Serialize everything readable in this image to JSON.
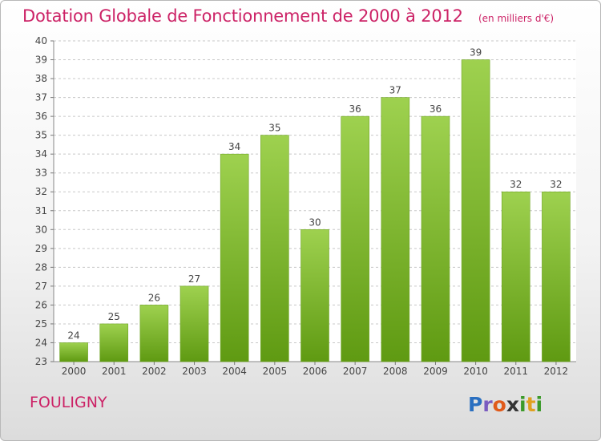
{
  "header": {
    "title": "Dotation Globale de Fonctionnement de 2000 à 2012",
    "subtitle": "(en milliers d'€)"
  },
  "commune": "FOULIGNY",
  "brand": {
    "name": "Proxiti",
    "letters": [
      {
        "char": "P",
        "color": "#2a6fc0"
      },
      {
        "char": "r",
        "color": "#7a5cc0"
      },
      {
        "char": "o",
        "color": "#e05a1a"
      },
      {
        "char": "x",
        "color": "#333333"
      },
      {
        "char": "i",
        "color": "#3c9a2a"
      },
      {
        "char": "t",
        "color": "#e0a020"
      },
      {
        "char": "i",
        "color": "#3c9a2a"
      }
    ]
  },
  "colors": {
    "accent": "#cc2266",
    "bar_light": "#9ed14f",
    "bar_dark": "#5f9a12"
  },
  "chart_data": {
    "type": "bar",
    "categories": [
      "2000",
      "2001",
      "2002",
      "2003",
      "2004",
      "2005",
      "2006",
      "2007",
      "2008",
      "2009",
      "2010",
      "2011",
      "2012"
    ],
    "values": [
      24,
      25,
      26,
      27,
      34,
      35,
      30,
      36,
      37,
      36,
      39,
      32,
      32
    ],
    "ylim": [
      23,
      40
    ],
    "yticks": [
      23,
      24,
      25,
      26,
      27,
      28,
      29,
      30,
      31,
      32,
      33,
      34,
      35,
      36,
      37,
      38,
      39,
      40
    ],
    "grid": true,
    "grid_style": "dashed",
    "legend": "none"
  }
}
